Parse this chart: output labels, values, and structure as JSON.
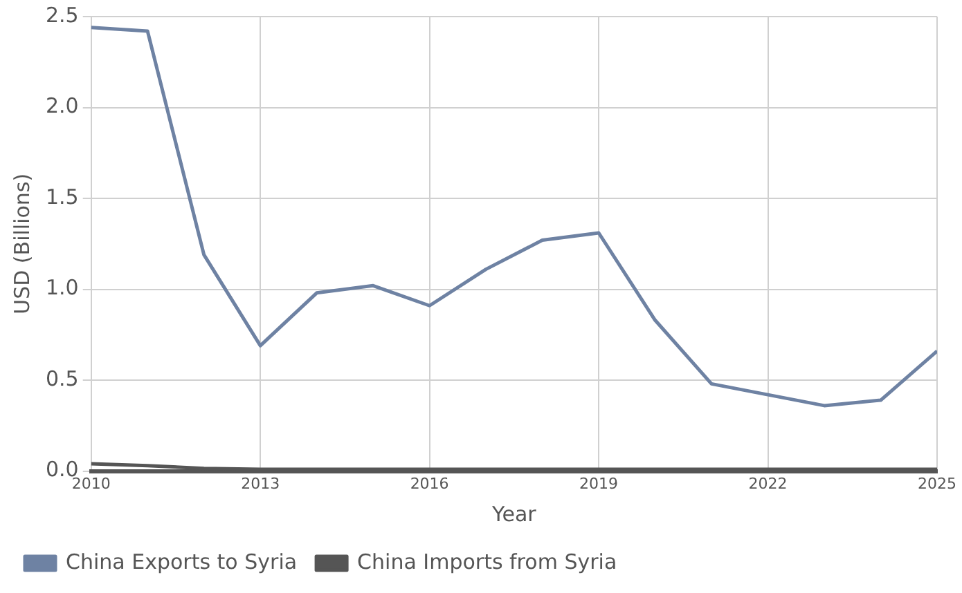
{
  "chart_data": {
    "type": "line",
    "xlabel": "Year",
    "ylabel": "USD (Billions)",
    "x": [
      2010,
      2011,
      2012,
      2013,
      2014,
      2015,
      2016,
      2017,
      2018,
      2019,
      2020,
      2021,
      2022,
      2023,
      2024,
      2025
    ],
    "xlim": [
      2010,
      2025
    ],
    "xticks": [
      2010,
      2013,
      2016,
      2019,
      2022,
      2025
    ],
    "ylim": [
      0,
      2.5
    ],
    "yticks": [
      {
        "value": 0,
        "label": "0.0"
      },
      {
        "value": 0.5,
        "label": "0.5"
      },
      {
        "value": 1,
        "label": "1.0"
      },
      {
        "value": 1.5,
        "label": "1.5"
      },
      {
        "value": 2,
        "label": "2.0"
      },
      {
        "value": 2.5,
        "label": "2.5"
      }
    ],
    "series": [
      {
        "name": "China Exports to Syria",
        "color": "#6e82a3",
        "values": [
          2.44,
          2.42,
          1.19,
          0.69,
          0.98,
          1.02,
          0.91,
          1.11,
          1.27,
          1.31,
          0.83,
          0.48,
          0.42,
          0.36,
          0.39,
          0.66
        ]
      },
      {
        "name": "China Imports from Syria",
        "color": "#555555",
        "values": [
          0.04,
          0.03,
          0.015,
          0.01,
          0.01,
          0.01,
          0.01,
          0.01,
          0.01,
          0.01,
          0.01,
          0.01,
          0.01,
          0.01,
          0.01,
          0.01
        ]
      }
    ],
    "grid": true,
    "legend": "bottom",
    "marker": "none",
    "line_style": "solid"
  }
}
